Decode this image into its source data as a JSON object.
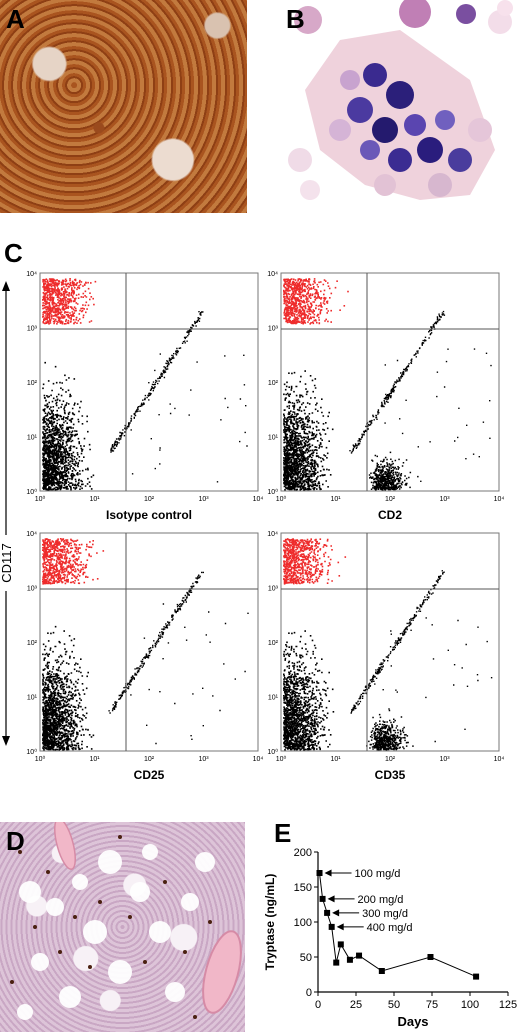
{
  "panels": {
    "a": "A",
    "b": "B",
    "c": "C",
    "d": "D",
    "e": "E"
  },
  "flow": {
    "y_axis_title": "CD117",
    "plots": [
      {
        "label": "Isotype control"
      },
      {
        "label": "CD2"
      },
      {
        "label": "CD25"
      },
      {
        "label": "CD35"
      }
    ],
    "x_ticks": [
      "10⁰",
      "10¹",
      "10²",
      "10³",
      "10⁴"
    ],
    "y_ticks": [
      "10⁰",
      "10¹",
      "10²",
      "10³",
      "10⁴"
    ],
    "colors": {
      "gated": "#ee2b2b",
      "events": "#000000",
      "gate_lines": "#555555"
    }
  },
  "chart_data": {
    "type": "line",
    "xlabel": "Days",
    "ylabel": "Tryptase (ng/mL)",
    "xlim": [
      0,
      125
    ],
    "ylim": [
      0,
      200
    ],
    "x_ticks": [
      0,
      25,
      50,
      75,
      100,
      125
    ],
    "y_ticks": [
      0,
      50,
      100,
      150,
      200
    ],
    "series": [
      {
        "x": [
          1,
          3,
          6,
          9,
          12,
          15,
          21,
          27,
          42,
          74,
          104
        ],
        "y": [
          170,
          133,
          113,
          93,
          42,
          68,
          46,
          52,
          30,
          50,
          22
        ]
      }
    ],
    "annotations": [
      {
        "text": "100 mg/d",
        "x": 1,
        "y": 170
      },
      {
        "text": "200 mg/d",
        "x": 3,
        "y": 133
      },
      {
        "text": "300 mg/d",
        "x": 6,
        "y": 113
      },
      {
        "text": "400 mg/d",
        "x": 9,
        "y": 93
      }
    ],
    "marker": "square",
    "color": "#000000"
  }
}
